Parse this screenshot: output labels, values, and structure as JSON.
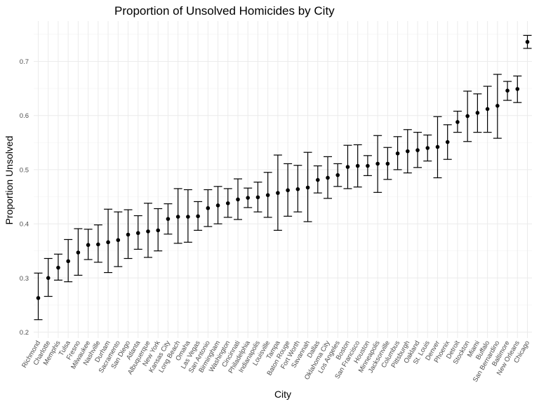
{
  "chart_data": {
    "type": "scatter",
    "title": "Proportion of Unsolved Homicides by City",
    "xlabel": "City",
    "ylabel": "Proportion Unsolved",
    "ylim": [
      0.2,
      0.75
    ],
    "yticks": [
      "0.2",
      "0.3",
      "0.4",
      "0.5",
      "0.6",
      "0.7"
    ],
    "grid": true,
    "error_bars": true,
    "categories": [
      "Richmond",
      "Charlotte",
      "Memphis",
      "Tulsa",
      "Fresno",
      "Milwaukee",
      "Nashville",
      "Durham",
      "Sacramento",
      "San Diego",
      "Atlanta",
      "Albuquerque",
      "New York",
      "Kansas City",
      "Long Beach",
      "Omaha",
      "Las Vegas",
      "San Antonio",
      "Birmingham",
      "Washington",
      "Cincinnati",
      "Philadelphia",
      "Indianapolis",
      "Louisville",
      "Tampa",
      "Baton Rouge",
      "Fort Worth",
      "Savannah",
      "Dallas",
      "Oklahoma City",
      "Los Angeles",
      "Boston",
      "San Francisco",
      "Houston",
      "Minneapolis",
      "Jacksonville",
      "Columbus",
      "Pittsburgh",
      "Oakland",
      "St. Louis",
      "Denver",
      "Phoenix",
      "Detroit",
      "Stockton",
      "Miami",
      "Buffalo",
      "San Bernardino",
      "Baltimore",
      "New Orleans",
      "Chicago"
    ],
    "values": [
      0.263,
      0.3,
      0.319,
      0.331,
      0.347,
      0.361,
      0.362,
      0.366,
      0.37,
      0.38,
      0.383,
      0.386,
      0.388,
      0.409,
      0.413,
      0.413,
      0.414,
      0.429,
      0.434,
      0.438,
      0.445,
      0.448,
      0.449,
      0.453,
      0.457,
      0.462,
      0.464,
      0.467,
      0.481,
      0.485,
      0.49,
      0.505,
      0.507,
      0.507,
      0.511,
      0.511,
      0.53,
      0.534,
      0.536,
      0.54,
      0.542,
      0.551,
      0.588,
      0.599,
      0.605,
      0.612,
      0.618,
      0.646,
      0.649,
      0.736
    ],
    "lower": [
      0.223,
      0.266,
      0.296,
      0.293,
      0.305,
      0.334,
      0.329,
      0.31,
      0.321,
      0.336,
      0.353,
      0.338,
      0.35,
      0.381,
      0.364,
      0.366,
      0.388,
      0.395,
      0.4,
      0.412,
      0.408,
      0.43,
      0.422,
      0.412,
      0.388,
      0.414,
      0.422,
      0.404,
      0.457,
      0.447,
      0.469,
      0.465,
      0.468,
      0.489,
      0.458,
      0.482,
      0.5,
      0.494,
      0.504,
      0.516,
      0.485,
      0.519,
      0.569,
      0.552,
      0.569,
      0.569,
      0.558,
      0.628,
      0.624,
      0.724
    ],
    "upper": [
      0.309,
      0.336,
      0.344,
      0.371,
      0.391,
      0.39,
      0.398,
      0.427,
      0.422,
      0.426,
      0.415,
      0.438,
      0.428,
      0.437,
      0.465,
      0.463,
      0.441,
      0.463,
      0.469,
      0.465,
      0.483,
      0.466,
      0.477,
      0.495,
      0.527,
      0.511,
      0.508,
      0.532,
      0.507,
      0.524,
      0.511,
      0.545,
      0.546,
      0.526,
      0.563,
      0.541,
      0.561,
      0.574,
      0.569,
      0.564,
      0.598,
      0.583,
      0.608,
      0.645,
      0.64,
      0.654,
      0.676,
      0.663,
      0.673,
      0.748
    ]
  }
}
